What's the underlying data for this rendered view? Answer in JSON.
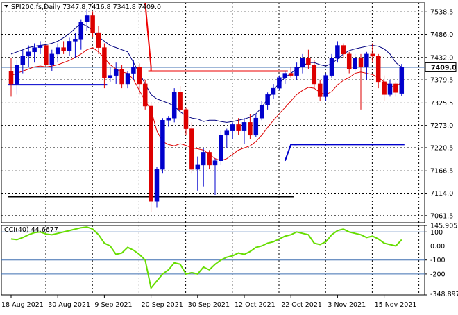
{
  "header": {
    "symbol_line": "SPI200.fs,Daily  7347.8 7416.8 7341.8 7409.0"
  },
  "indicator": {
    "label": "CCI(40) 44.6677"
  },
  "colors": {
    "bull": "#0000cc",
    "bear": "#dd0000",
    "ma_upper": "#000080",
    "ma_lower": "#dd0000",
    "cci": "#66dd00",
    "grid": "#000000",
    "level_line": "#3f6fb0",
    "support": "#000000",
    "resistance": "#ee0000",
    "blue_level": "#0000cc",
    "price_box_bg": "#ffffff"
  },
  "chart_data": [
    {
      "type": "candlestick",
      "title": "SPI200.fs,Daily",
      "ohlc_header": {
        "open": 7347.8,
        "high": 7416.8,
        "low": 7341.8,
        "close": 7409.0
      },
      "ylim": [
        7045,
        7560
      ],
      "y_ticks": [
        "7538.5",
        "7486.0",
        "7432.0",
        "7379.5",
        "7325.5",
        "7273.0",
        "7220.5",
        "7166.5",
        "7114.0",
        "7061.5"
      ],
      "y_tick_values": [
        7538.5,
        7486.0,
        7432.0,
        7379.5,
        7325.5,
        7273.0,
        7220.5,
        7166.5,
        7114.0,
        7061.5
      ],
      "current_price": "7409.0",
      "current_price_value": 7409.0,
      "x_tick_labels": [
        "18 Aug 2021",
        "30 Aug 2021",
        "9 Sep 2021",
        "20 Sep 2021",
        "30 Sep 2021",
        "12 Oct 2021",
        "22 Oct 2021",
        "3 Nov 2021",
        "15 Nov 2021"
      ],
      "x_tick_bar_index": [
        0,
        8,
        16,
        24,
        32,
        40,
        48,
        56,
        64
      ],
      "candles": [
        [
          7400,
          7430,
          7340,
          7370
        ],
        [
          7370,
          7425,
          7345,
          7415
        ],
        [
          7415,
          7450,
          7395,
          7435
        ],
        [
          7435,
          7460,
          7410,
          7445
        ],
        [
          7445,
          7465,
          7420,
          7455
        ],
        [
          7455,
          7470,
          7440,
          7460
        ],
        [
          7460,
          7468,
          7405,
          7415
        ],
        [
          7415,
          7450,
          7400,
          7440
        ],
        [
          7440,
          7465,
          7420,
          7455
        ],
        [
          7455,
          7470,
          7440,
          7448
        ],
        [
          7448,
          7478,
          7435,
          7470
        ],
        [
          7470,
          7490,
          7430,
          7475
        ],
        [
          7475,
          7520,
          7450,
          7515
        ],
        [
          7515,
          7545,
          7495,
          7530
        ],
        [
          7530,
          7540,
          7480,
          7490
        ],
        [
          7490,
          7505,
          7440,
          7455
        ],
        [
          7455,
          7465,
          7360,
          7385
        ],
        [
          7385,
          7410,
          7375,
          7390
        ],
        [
          7390,
          7420,
          7370,
          7405
        ],
        [
          7405,
          7415,
          7360,
          7370
        ],
        [
          7370,
          7400,
          7360,
          7395
        ],
        [
          7395,
          7425,
          7380,
          7410
        ],
        [
          7410,
          7418,
          7345,
          7370
        ],
        [
          7370,
          7380,
          7310,
          7318
        ],
        [
          7318,
          7325,
          7070,
          7095
        ],
        [
          7095,
          7175,
          7080,
          7170
        ],
        [
          7170,
          7290,
          7160,
          7285
        ],
        [
          7285,
          7295,
          7270,
          7290
        ],
        [
          7290,
          7360,
          7280,
          7350
        ],
        [
          7350,
          7365,
          7300,
          7310
        ],
        [
          7310,
          7315,
          7250,
          7265
        ],
        [
          7265,
          7280,
          7160,
          7170
        ],
        [
          7170,
          7200,
          7120,
          7180
        ],
        [
          7180,
          7220,
          7130,
          7210
        ],
        [
          7210,
          7215,
          7170,
          7180
        ],
        [
          7180,
          7195,
          7110,
          7190
        ],
        [
          7190,
          7260,
          7180,
          7250
        ],
        [
          7250,
          7265,
          7220,
          7260
        ],
        [
          7260,
          7280,
          7240,
          7275
        ],
        [
          7275,
          7290,
          7250,
          7260
        ],
        [
          7260,
          7290,
          7230,
          7280
        ],
        [
          7280,
          7300,
          7240,
          7250
        ],
        [
          7250,
          7300,
          7245,
          7290
        ],
        [
          7290,
          7330,
          7285,
          7320
        ],
        [
          7320,
          7350,
          7310,
          7345
        ],
        [
          7345,
          7370,
          7335,
          7360
        ],
        [
          7360,
          7390,
          7355,
          7385
        ],
        [
          7385,
          7400,
          7370,
          7395
        ],
        [
          7395,
          7410,
          7385,
          7390
        ],
        [
          7390,
          7420,
          7380,
          7410
        ],
        [
          7410,
          7440,
          7395,
          7430
        ],
        [
          7430,
          7450,
          7405,
          7415
        ],
        [
          7415,
          7425,
          7360,
          7370
        ],
        [
          7370,
          7380,
          7330,
          7340
        ],
        [
          7340,
          7395,
          7330,
          7390
        ],
        [
          7390,
          7440,
          7385,
          7430
        ],
        [
          7430,
          7470,
          7420,
          7460
        ],
        [
          7460,
          7465,
          7430,
          7440
        ],
        [
          7440,
          7445,
          7395,
          7405
        ],
        [
          7405,
          7440,
          7400,
          7430
        ],
        [
          7430,
          7440,
          7310,
          7410
        ],
        [
          7410,
          7445,
          7380,
          7440
        ],
        [
          7440,
          7465,
          7420,
          7435
        ],
        [
          7435,
          7440,
          7360,
          7375
        ],
        [
          7375,
          7390,
          7330,
          7345
        ],
        [
          7345,
          7380,
          7340,
          7370
        ],
        [
          7370,
          7375,
          7340,
          7350
        ],
        [
          7347.8,
          7416.8,
          7341.8,
          7409.0
        ]
      ],
      "ma_upper": [
        7440,
        7445,
        7450,
        7455,
        7458,
        7460,
        7462,
        7465,
        7470,
        7478,
        7488,
        7500,
        7512,
        7505,
        7495,
        7480,
        7470,
        7460,
        7455,
        7450,
        7445,
        7420,
        7395,
        7370,
        7345,
        7335,
        7330,
        7325,
        7318,
        7305,
        7295,
        7290,
        7288,
        7282,
        7285,
        7285,
        7282,
        7280,
        7282,
        7285,
        7288,
        7292,
        7300,
        7315,
        7335,
        7355,
        7372,
        7385,
        7395,
        7405,
        7412,
        7420,
        7420,
        7415,
        7412,
        7418,
        7428,
        7440,
        7448,
        7452,
        7455,
        7458,
        7460,
        7458,
        7452,
        7440,
        7420,
        7409
      ],
      "ma_lower": [
        7390,
        7395,
        7400,
        7405,
        7410,
        7412,
        7410,
        7412,
        7415,
        7420,
        7425,
        7432,
        7440,
        7450,
        7455,
        7445,
        7430,
        7415,
        7405,
        7398,
        7395,
        7380,
        7355,
        7330,
        7310,
        7260,
        7235,
        7228,
        7225,
        7230,
        7226,
        7220,
        7218,
        7215,
        7205,
        7195,
        7190,
        7195,
        7205,
        7215,
        7220,
        7225,
        7235,
        7250,
        7268,
        7285,
        7300,
        7315,
        7330,
        7345,
        7355,
        7362,
        7360,
        7350,
        7345,
        7352,
        7368,
        7378,
        7385,
        7395,
        7398,
        7395,
        7392,
        7385,
        7375,
        7365,
        7362,
        7375
      ],
      "levels": [
        {
          "name": "resistance",
          "value": 7400,
          "from": 24,
          "to": 47
        },
        {
          "name": "upper-blue",
          "value": 7368,
          "from": 0,
          "to": 16
        },
        {
          "name": "support",
          "value": 7106,
          "from": 0,
          "to": 48
        },
        {
          "name": "lower-blue",
          "value": 7228,
          "from": 49,
          "to": 67
        }
      ],
      "step_line": [
        [
          23,
          7560
        ],
        [
          24,
          7410
        ],
        [
          24,
          7400
        ]
      ],
      "blue_tick": [
        [
          47,
          7190
        ],
        [
          48,
          7228
        ],
        [
          49,
          7228
        ]
      ]
    },
    {
      "type": "line",
      "title": "CCI(40) 44.6677",
      "ylim": [
        -348.8971,
        145.905
      ],
      "y_ticks": [
        "145.905",
        "100",
        "0.00",
        "-100",
        "-200",
        "-348.8971"
      ],
      "y_tick_values": [
        145.905,
        100,
        0,
        -100,
        -200,
        -348.8971
      ],
      "levels": [
        100,
        -100,
        -200
      ],
      "series": [
        {
          "values": [
            50,
            45,
            60,
            80,
            95,
            100,
            85,
            80,
            90,
            100,
            110,
            120,
            130,
            135,
            120,
            80,
            20,
            0,
            -60,
            -50,
            -10,
            -30,
            -60,
            -100,
            -300,
            -250,
            -200,
            -170,
            -120,
            -130,
            -200,
            -190,
            -200,
            -150,
            -170,
            -130,
            -100,
            -80,
            -70,
            -50,
            -60,
            -40,
            -10,
            0,
            20,
            30,
            50,
            70,
            80,
            100,
            90,
            80,
            20,
            10,
            30,
            80,
            110,
            120,
            100,
            90,
            80,
            60,
            70,
            50,
            20,
            10,
            0,
            44.6677
          ]
        }
      ]
    }
  ]
}
